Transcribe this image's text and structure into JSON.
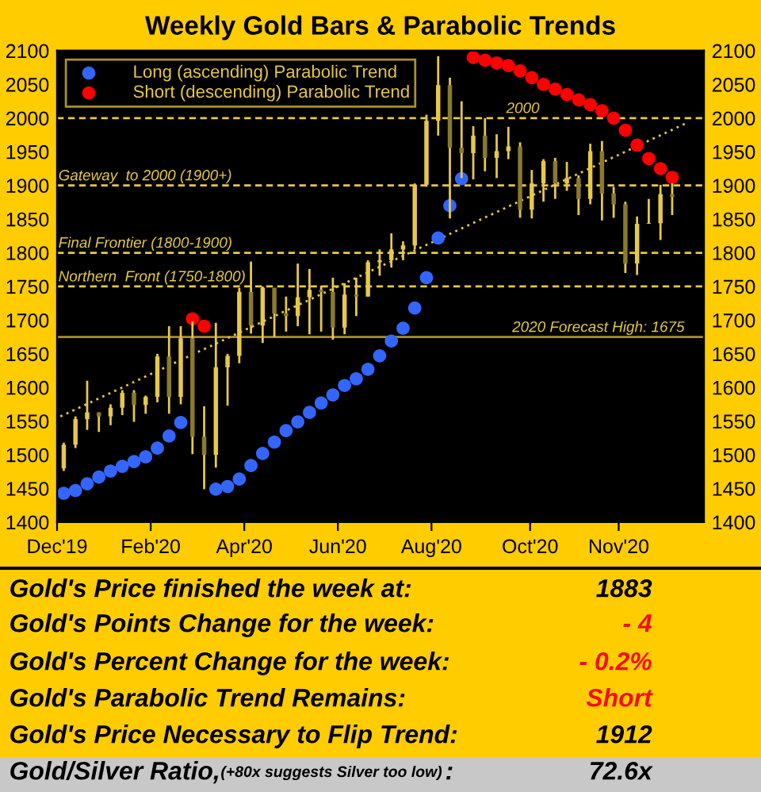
{
  "chart_data": {
    "type": "candlestick",
    "title": "Weekly Gold Bars & Parabolic Trends",
    "x": [
      "2019-12-27",
      "2020-01-03",
      "2020-01-10",
      "2020-01-17",
      "2020-01-24",
      "2020-01-31",
      "2020-02-07",
      "2020-02-14",
      "2020-02-21",
      "2020-02-28",
      "2020-03-06",
      "2020-03-13",
      "2020-03-20",
      "2020-03-27",
      "2020-04-03",
      "2020-04-10",
      "2020-04-17",
      "2020-04-24",
      "2020-05-01",
      "2020-05-08",
      "2020-05-15",
      "2020-05-22",
      "2020-05-29",
      "2020-06-05",
      "2020-06-12",
      "2020-06-19",
      "2020-06-26",
      "2020-07-03",
      "2020-07-10",
      "2020-07-17",
      "2020-07-24",
      "2020-07-31",
      "2020-08-07",
      "2020-08-14",
      "2020-08-21",
      "2020-08-28",
      "2020-09-04",
      "2020-09-11",
      "2020-09-18",
      "2020-09-25",
      "2020-10-02",
      "2020-10-09",
      "2020-10-16",
      "2020-10-23",
      "2020-10-30",
      "2020-11-06",
      "2020-11-13",
      "2020-11-20",
      "2020-11-27",
      "2020-12-04",
      "2020-12-11",
      "2020-12-18",
      "2020-12-25"
    ],
    "ohlc": [
      [
        1480,
        1518,
        1476,
        1515
      ],
      [
        1515,
        1557,
        1510,
        1553
      ],
      [
        1553,
        1610,
        1537,
        1563
      ],
      [
        1563,
        1563,
        1534,
        1557
      ],
      [
        1557,
        1575,
        1544,
        1570
      ],
      [
        1570,
        1596,
        1559,
        1592
      ],
      [
        1592,
        1596,
        1549,
        1574
      ],
      [
        1574,
        1588,
        1561,
        1586
      ],
      [
        1586,
        1650,
        1578,
        1646
      ],
      [
        1646,
        1691,
        1561,
        1586
      ],
      [
        1586,
        1691,
        1575,
        1673
      ],
      [
        1673,
        1698,
        1501,
        1527
      ],
      [
        1527,
        1572,
        1449,
        1500
      ],
      [
        1500,
        1696,
        1481,
        1630
      ],
      [
        1630,
        1650,
        1573,
        1647
      ],
      [
        1647,
        1748,
        1636,
        1742
      ],
      [
        1742,
        1787,
        1680,
        1692
      ],
      [
        1692,
        1750,
        1666,
        1748
      ],
      [
        1748,
        1748,
        1675,
        1710
      ],
      [
        1710,
        1735,
        1683,
        1706
      ],
      [
        1706,
        1784,
        1691,
        1734
      ],
      [
        1734,
        1776,
        1679,
        1745
      ],
      [
        1745,
        1751,
        1683,
        1742
      ],
      [
        1742,
        1763,
        1671,
        1689
      ],
      [
        1689,
        1755,
        1679,
        1738
      ],
      [
        1738,
        1763,
        1706,
        1735
      ],
      [
        1735,
        1789,
        1735,
        1786
      ],
      [
        1786,
        1805,
        1766,
        1789
      ],
      [
        1789,
        1829,
        1778,
        1805
      ],
      [
        1805,
        1817,
        1789,
        1811
      ],
      [
        1811,
        1903,
        1805,
        1901
      ],
      [
        1901,
        2005,
        1898,
        1996
      ],
      [
        1996,
        2092,
        1974,
        2049
      ],
      [
        2049,
        2060,
        1851,
        1956
      ],
      [
        1956,
        2025,
        1911,
        1948
      ],
      [
        1948,
        1988,
        1909,
        1974
      ],
      [
        1974,
        2000,
        1921,
        1941
      ],
      [
        1941,
        1976,
        1911,
        1951
      ],
      [
        1951,
        1987,
        1939,
        1958
      ],
      [
        1958,
        1964,
        1852,
        1864
      ],
      [
        1864,
        1923,
        1851,
        1903
      ],
      [
        1903,
        1939,
        1876,
        1936
      ],
      [
        1936,
        1941,
        1880,
        1903
      ],
      [
        1903,
        1935,
        1892,
        1911
      ],
      [
        1911,
        1915,
        1856,
        1880
      ],
      [
        1880,
        1962,
        1872,
        1951
      ],
      [
        1951,
        1966,
        1848,
        1888
      ],
      [
        1888,
        1898,
        1852,
        1872
      ],
      [
        1872,
        1876,
        1770,
        1784
      ],
      [
        1784,
        1854,
        1767,
        1843
      ],
      [
        1843,
        1880,
        1843,
        1844
      ],
      [
        1844,
        1901,
        1819,
        1887
      ],
      [
        1887,
        1903,
        1856,
        1883
      ]
    ],
    "series": [
      {
        "type": "scatter",
        "name": "Long (ascending) Parabolic Trend",
        "color": "#3366ff",
        "marker": "circle",
        "values": [
          1443,
          1447,
          1457,
          1467,
          1476,
          1483,
          1490,
          1497,
          1510,
          1528,
          1548,
          null,
          null,
          1449,
          1453,
          1464,
          1484,
          1502,
          1519,
          1536,
          1549,
          1563,
          1577,
          1589,
          1603,
          1613,
          1627,
          1647,
          1669,
          1688,
          1718,
          1763,
          1822,
          1870,
          1910,
          null,
          null,
          null,
          null,
          null,
          null,
          null,
          null,
          null,
          null,
          null,
          null,
          null,
          null,
          null,
          null,
          null,
          null
        ]
      },
      {
        "type": "scatter",
        "name": "Short (descending) Parabolic Trend",
        "color": "#ff0000",
        "marker": "circle",
        "values": [
          null,
          null,
          null,
          null,
          null,
          null,
          null,
          null,
          null,
          null,
          null,
          1702,
          1691,
          null,
          null,
          null,
          null,
          null,
          null,
          null,
          null,
          null,
          null,
          null,
          null,
          null,
          null,
          null,
          null,
          null,
          null,
          null,
          null,
          null,
          null,
          2090,
          2086,
          2082,
          2078,
          2070,
          2060,
          2050,
          2043,
          2035,
          2027,
          2020,
          2011,
          2000,
          1982,
          1960,
          1940,
          1925,
          1912
        ]
      },
      {
        "type": "line",
        "color": "#e6c84a",
        "line_style": "dotted",
        "x": [
          "2019-12-25",
          "2021-01-02"
        ],
        "values": [
          1557,
          1992
        ]
      }
    ],
    "xlim": [
      "2019-12-23",
      "2021-01-13"
    ],
    "xticks": [
      {
        "value": "2019-12-23",
        "label": "Dec'19"
      },
      {
        "value": "2020-02-17",
        "label": "Feb'20"
      },
      {
        "value": "2020-04-13",
        "label": "Apr'20"
      },
      {
        "value": "2020-06-08",
        "label": "Jun'20"
      },
      {
        "value": "2020-08-03",
        "label": "Aug'20"
      },
      {
        "value": "2020-10-01",
        "label": "Oct'20"
      },
      {
        "value": "2020-11-23",
        "label": "Nov'20"
      }
    ],
    "ylim": [
      1400,
      2100
    ],
    "yticks": [
      1400,
      1450,
      1500,
      1550,
      1600,
      1650,
      1700,
      1750,
      1800,
      1850,
      1900,
      1950,
      2000,
      2050,
      2100
    ],
    "y2lim": [
      1400,
      2100
    ],
    "y2ticks": [
      1400,
      1450,
      1500,
      1550,
      1600,
      1650,
      1700,
      1750,
      1800,
      1850,
      1900,
      1950,
      2000,
      2050,
      2100
    ],
    "ref_lines": [
      {
        "axis": "y",
        "value": 2000,
        "label": "2000",
        "color": "#e6c84a",
        "line_style": "dashed"
      },
      {
        "axis": "y",
        "value": 1900,
        "label": "Gateway  to 2000 (1900+)",
        "color": "#e6c84a",
        "line_style": "dashed"
      },
      {
        "axis": "y",
        "value": 1800,
        "label": "Final Frontier (1800-1900)",
        "color": "#e6c84a",
        "line_style": "dashed"
      },
      {
        "axis": "y",
        "value": 1750,
        "label": "Northern  Front (1750-1800)",
        "color": "#e6c84a",
        "line_style": "dashed"
      },
      {
        "axis": "y",
        "value": 1675,
        "label": "2020 Forecast High: 1675",
        "color": "#a89030",
        "line_style": "solid"
      }
    ],
    "legend": "top left",
    "grid": false,
    "annotations": [
      "Gold's Price finished the week at:",
      "1883",
      "Gold's Points Change for the week:",
      "- 4",
      "Gold's Percent Change for the week:",
      "- 0.2%",
      "Gold's Parabolic Trend Remains:",
      "Short",
      "Gold's Price Necessary to Flip Trend:",
      "1912",
      "Gold/Silver Ratio,",
      "(+80x suggests Silver too low)",
      ":",
      "72.6x"
    ]
  }
}
